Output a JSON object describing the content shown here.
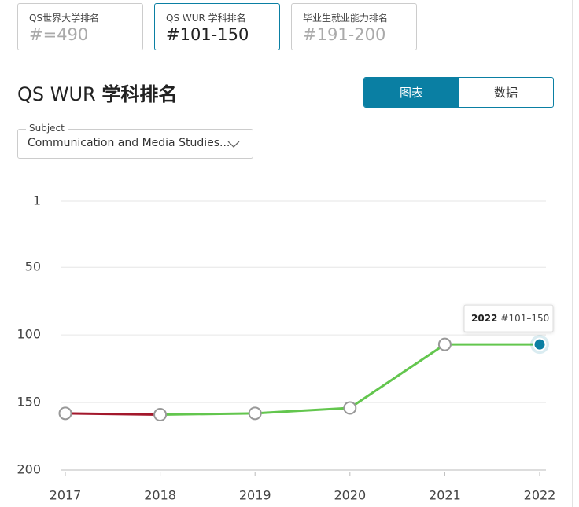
{
  "tabs": [
    {
      "label": "QS世界大学排名",
      "value": "#=490"
    },
    {
      "label": "QS WUR 学科排名",
      "value": "#101-150"
    },
    {
      "label": "毕业生就业能力排名",
      "value": "#191-200"
    }
  ],
  "heading": {
    "prefix": "QS WUR",
    "bold": "学科排名"
  },
  "view_toggle": [
    "图表",
    "数据"
  ],
  "subject": {
    "label": "Subject",
    "value": "Communication and Media Studies..."
  },
  "chart_data": {
    "type": "line",
    "categories": [
      "2017",
      "2018",
      "2019",
      "2020",
      "2021",
      "2022"
    ],
    "values": [
      158,
      159,
      158,
      154,
      107,
      107
    ],
    "color": "#63c64e",
    "fall_color": "#a3182c",
    "highlight_color": "#0a7fa3",
    "ylim": [
      1,
      200
    ],
    "yticks": [
      1,
      50,
      100,
      150,
      200
    ],
    "inverted": true,
    "grid": true,
    "tooltip": {
      "year": "2022",
      "text": "#101–150"
    }
  }
}
